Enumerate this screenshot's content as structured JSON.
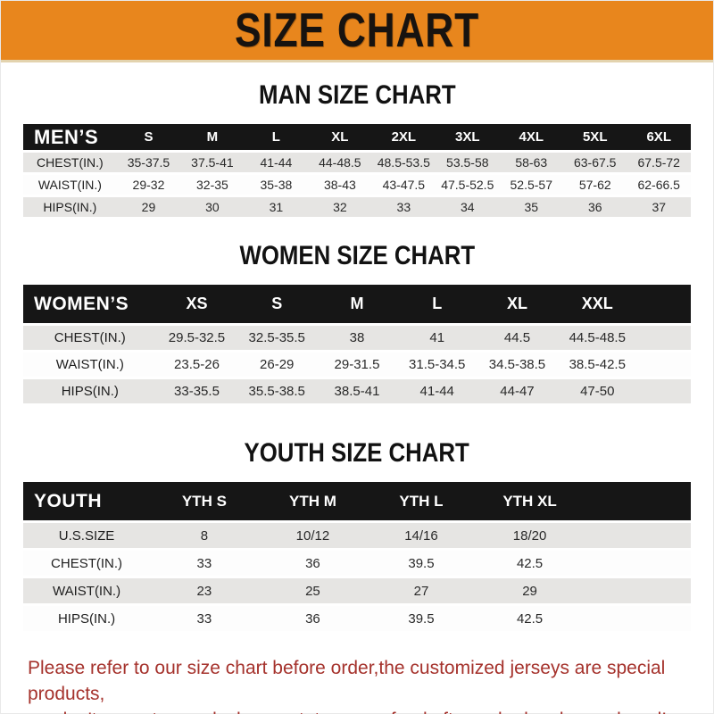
{
  "page": {
    "header_title": "SIZE CHART",
    "footer_lines": [
      "Please refer to our size chart before order,the customized jerseys are special products,",
      "we don't accept cancel, change, teturn or refund after order has been placed!"
    ],
    "colors": {
      "header_bg": "#E8861D",
      "table_header_bg": "#161616",
      "row_stripe": "#E6E5E3",
      "footer_text": "#A5322C"
    }
  },
  "sections": [
    {
      "title": "MAN SIZE CHART",
      "table": {
        "header": [
          "MEN’S",
          "S",
          "M",
          "L",
          "XL",
          "2XL",
          "3XL",
          "4XL",
          "5XL",
          "6XL"
        ],
        "rows": [
          [
            "CHEST(IN.)",
            "35-37.5",
            "37.5-41",
            "41-44",
            "44-48.5",
            "48.5-53.5",
            "53.5-58",
            "58-63",
            "63-67.5",
            "67.5-72"
          ],
          [
            "WAIST(IN.)",
            "29-32",
            "32-35",
            "35-38",
            "38-43",
            "43-47.5",
            "47.5-52.5",
            "52.5-57",
            "57-62",
            "62-66.5"
          ],
          [
            "HIPS(IN.)",
            "29",
            "30",
            "31",
            "32",
            "33",
            "34",
            "35",
            "36",
            "37"
          ]
        ]
      }
    },
    {
      "title": "WOMEN SIZE CHART",
      "table": {
        "header": [
          "WOMEN’S",
          "XS",
          "S",
          "M",
          "L",
          "XL",
          "XXL"
        ],
        "rows": [
          [
            "CHEST(IN.)",
            "29.5-32.5",
            "32.5-35.5",
            "38",
            "41",
            "44.5",
            "44.5-48.5"
          ],
          [
            "WAIST(IN.)",
            "23.5-26",
            "26-29",
            "29-31.5",
            "31.5-34.5",
            "34.5-38.5",
            "38.5-42.5"
          ],
          [
            "HIPS(IN.)",
            "33-35.5",
            "35.5-38.5",
            "38.5-41",
            "41-44",
            "44-47",
            "47-50"
          ]
        ]
      }
    },
    {
      "title": "YOUTH SIZE CHART",
      "table": {
        "header": [
          "YOUTH",
          "YTH S",
          "YTH M",
          "YTH L",
          "YTH XL"
        ],
        "rows": [
          [
            "U.S.SIZE",
            "8",
            "10/12",
            "14/16",
            "18/20"
          ],
          [
            "CHEST(IN.)",
            "33",
            "36",
            "39.5",
            "42.5"
          ],
          [
            "WAIST(IN.)",
            "23",
            "25",
            "27",
            "29"
          ],
          [
            "HIPS(IN.)",
            "33",
            "36",
            "39.5",
            "42.5"
          ]
        ]
      }
    }
  ]
}
